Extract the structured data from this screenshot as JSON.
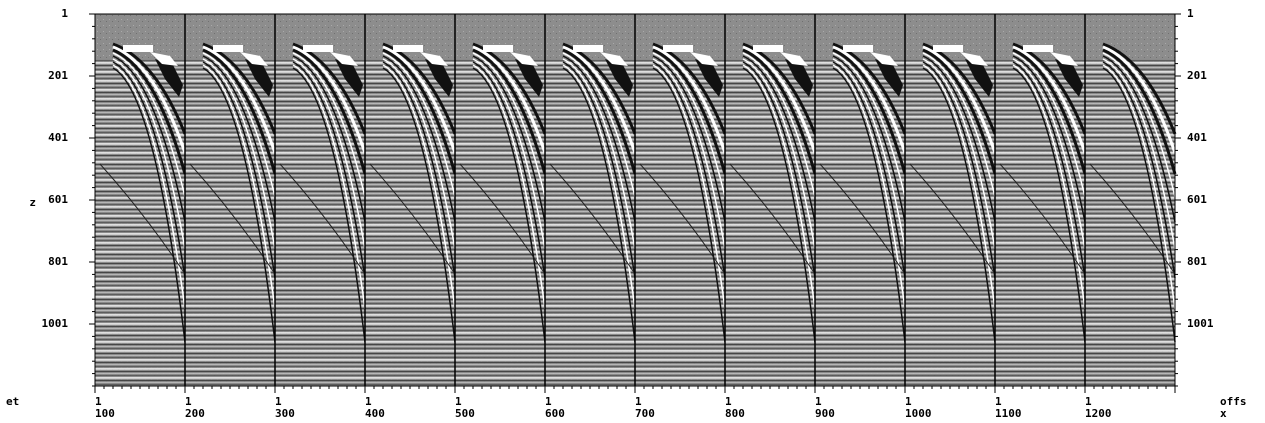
{
  "y_axis": {
    "label": "z",
    "ticks": [
      "1",
      "201",
      "401",
      "601",
      "801",
      "1001"
    ]
  },
  "x_axis": {
    "left_label": "et",
    "right_label": [
      "offs",
      "x"
    ],
    "panel_start_labels": [
      "1",
      "1",
      "1",
      "1",
      "1",
      "1",
      "1",
      "1",
      "1",
      "1",
      "1",
      "1"
    ],
    "panel_labels": [
      "100",
      "200",
      "300",
      "400",
      "500",
      "600",
      "700",
      "800",
      "900",
      "1000",
      "1100",
      "1200"
    ]
  }
}
